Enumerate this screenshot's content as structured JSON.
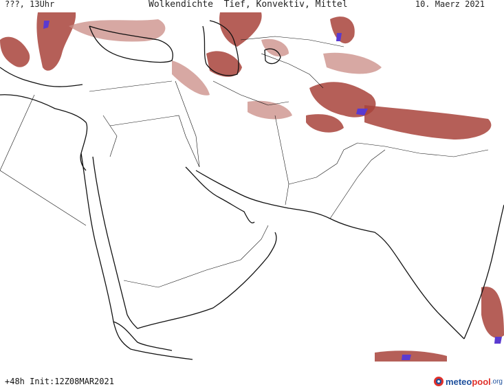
{
  "header": {
    "left": "???, 13Uhr",
    "title": "Wolkendichte  Tief, Konvektiv, Mittel",
    "date": "10. Maerz 2021"
  },
  "footer": {
    "run": "+48h Init:12Z08MAR2021"
  },
  "logo": {
    "part1": "meteo",
    "part2": "pool",
    "part3": ".org"
  },
  "legend_colors": {
    "cloud_dense": "#a8433b",
    "cloud_light": "#c98b84",
    "cloud_convective": "#5a3ad0"
  }
}
